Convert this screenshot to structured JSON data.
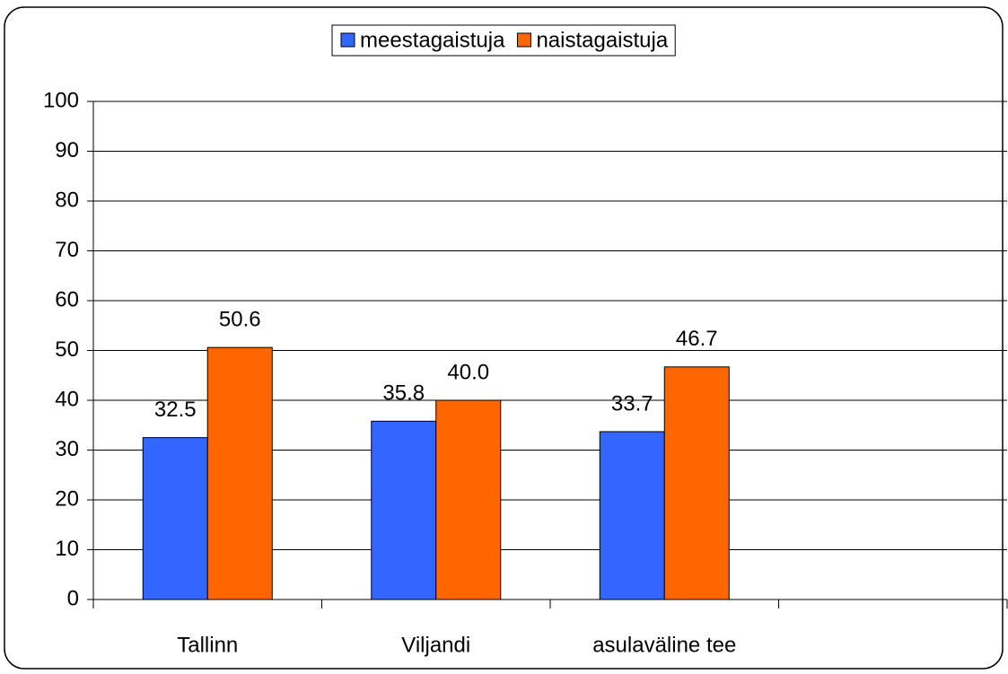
{
  "chart_data": {
    "type": "bar",
    "categories": [
      "Tallinn",
      "Viljandi",
      "asulaväline tee",
      null
    ],
    "series": [
      {
        "name": "meestagaistuja",
        "color": "#3366ff",
        "values": [
          32.5,
          35.8,
          33.7,
          null
        ],
        "value_labels": [
          "32.5",
          "35.8",
          "33.7",
          null
        ]
      },
      {
        "name": "naistagaistuja",
        "color": "#ff6600",
        "values": [
          50.6,
          40.0,
          46.7,
          null
        ],
        "value_labels": [
          "50.6",
          "40.0",
          "46.7",
          null
        ]
      }
    ],
    "ylim": [
      0,
      100
    ],
    "yticks": [
      0,
      10,
      20,
      30,
      40,
      50,
      60,
      70,
      80,
      90,
      100
    ],
    "grid": true,
    "legend": "top"
  }
}
